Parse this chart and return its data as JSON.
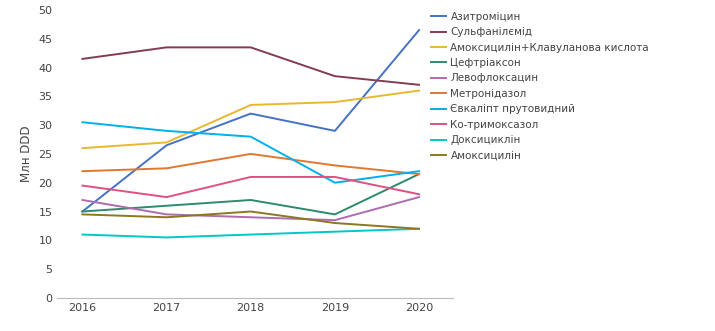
{
  "years": [
    2016,
    2017,
    2018,
    2019,
    2020
  ],
  "series": [
    {
      "name": "Азитроміцин",
      "color": "#4472c4",
      "values": [
        15.0,
        26.5,
        32.0,
        29.0,
        46.5
      ]
    },
    {
      "name": "Сульфанілємід",
      "color": "#843c50",
      "values": [
        41.5,
        43.5,
        43.5,
        38.5,
        37.0
      ]
    },
    {
      "name": "Амоксицилін+Клавуланова кислота",
      "color": "#e8b830",
      "values": [
        26.0,
        27.0,
        33.5,
        34.0,
        36.0
      ]
    },
    {
      "name": "Цефтріаксон",
      "color": "#2e8b6a",
      "values": [
        15.0,
        16.0,
        17.0,
        14.5,
        21.5
      ]
    },
    {
      "name": "Левофлоксацин",
      "color": "#b06ab0",
      "values": [
        17.0,
        14.5,
        14.0,
        13.5,
        17.5
      ]
    },
    {
      "name": "Метронідазол",
      "color": "#e07830",
      "values": [
        22.0,
        22.5,
        25.0,
        23.0,
        21.5
      ]
    },
    {
      "name": "Євкаліпт прутовидний",
      "color": "#00b0e8",
      "values": [
        30.5,
        29.0,
        28.0,
        20.0,
        22.0
      ]
    },
    {
      "name": "Ко-тримоксазол",
      "color": "#e05080",
      "values": [
        19.5,
        17.5,
        21.0,
        21.0,
        18.0
      ]
    },
    {
      "name": "Доксициклін",
      "color": "#00c8c8",
      "values": [
        11.0,
        10.5,
        11.0,
        11.5,
        12.0
      ]
    },
    {
      "name": "Амоксицилін",
      "color": "#8b7820",
      "values": [
        14.5,
        14.0,
        15.0,
        13.0,
        12.0
      ]
    }
  ],
  "ylabel": "Млн DDD",
  "ylim": [
    0,
    50
  ],
  "yticks": [
    0,
    5,
    10,
    15,
    20,
    25,
    30,
    35,
    40,
    45,
    50
  ],
  "xticks": [
    2016,
    2017,
    2018,
    2019,
    2020
  ],
  "legend_fontsize": 7.5,
  "axis_fontsize": 8.5,
  "tick_fontsize": 8,
  "linewidth": 1.4,
  "figsize": [
    7.15,
    3.31
  ],
  "dpi": 100
}
